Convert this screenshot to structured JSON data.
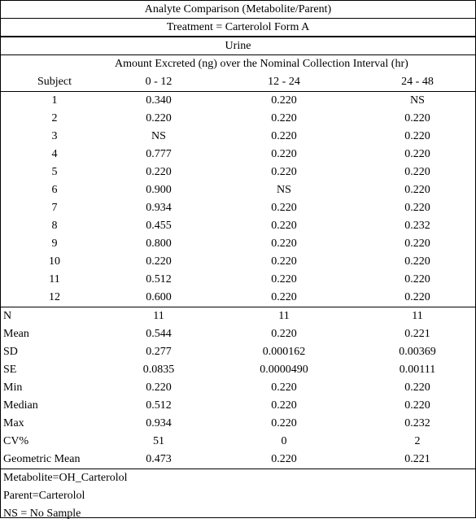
{
  "title": "Analyte Comparison (Metabolite/Parent)",
  "treatment": "Treatment = Carterolol Form A",
  "matrix": "Urine",
  "caption": "Amount Excreted (ng) over the Nominal Collection Interval (hr)",
  "columns": {
    "subject": "Subject",
    "interval1": "0 - 12",
    "interval2": "12 - 24",
    "interval3": "24 - 48"
  },
  "subjects": [
    {
      "id": "1",
      "v1": "0.340",
      "v2": "0.220",
      "v3": "NS"
    },
    {
      "id": "2",
      "v1": "0.220",
      "v2": "0.220",
      "v3": "0.220"
    },
    {
      "id": "3",
      "v1": "NS",
      "v2": "0.220",
      "v3": "0.220"
    },
    {
      "id": "4",
      "v1": "0.777",
      "v2": "0.220",
      "v3": "0.220"
    },
    {
      "id": "5",
      "v1": "0.220",
      "v2": "0.220",
      "v3": "0.220"
    },
    {
      "id": "6",
      "v1": "0.900",
      "v2": "NS",
      "v3": "0.220"
    },
    {
      "id": "7",
      "v1": "0.934",
      "v2": "0.220",
      "v3": "0.220"
    },
    {
      "id": "8",
      "v1": "0.455",
      "v2": "0.220",
      "v3": "0.232"
    },
    {
      "id": "9",
      "v1": "0.800",
      "v2": "0.220",
      "v3": "0.220"
    },
    {
      "id": "10",
      "v1": "0.220",
      "v2": "0.220",
      "v3": "0.220"
    },
    {
      "id": "11",
      "v1": "0.512",
      "v2": "0.220",
      "v3": "0.220"
    },
    {
      "id": "12",
      "v1": "0.600",
      "v2": "0.220",
      "v3": "0.220"
    }
  ],
  "stats": [
    {
      "label": "N",
      "v1": "11",
      "v2": "11",
      "v3": "11"
    },
    {
      "label": "Mean",
      "v1": "0.544",
      "v2": "0.220",
      "v3": "0.221"
    },
    {
      "label": "SD",
      "v1": "0.277",
      "v2": "0.000162",
      "v3": "0.00369"
    },
    {
      "label": "SE",
      "v1": "0.0835",
      "v2": "0.0000490",
      "v3": "0.00111"
    },
    {
      "label": "Min",
      "v1": "0.220",
      "v2": "0.220",
      "v3": "0.220"
    },
    {
      "label": "Median",
      "v1": "0.512",
      "v2": "0.220",
      "v3": "0.220"
    },
    {
      "label": "Max",
      "v1": "0.934",
      "v2": "0.220",
      "v3": "0.232"
    },
    {
      "label": "CV%",
      "v1": "51",
      "v2": "0",
      "v3": "2"
    },
    {
      "label": "Geometric Mean",
      "v1": "0.473",
      "v2": "0.220",
      "v3": "0.221"
    }
  ],
  "notes": [
    "Metabolite=OH_Carterolol",
    "Parent=Carterolol",
    "NS = No Sample"
  ]
}
